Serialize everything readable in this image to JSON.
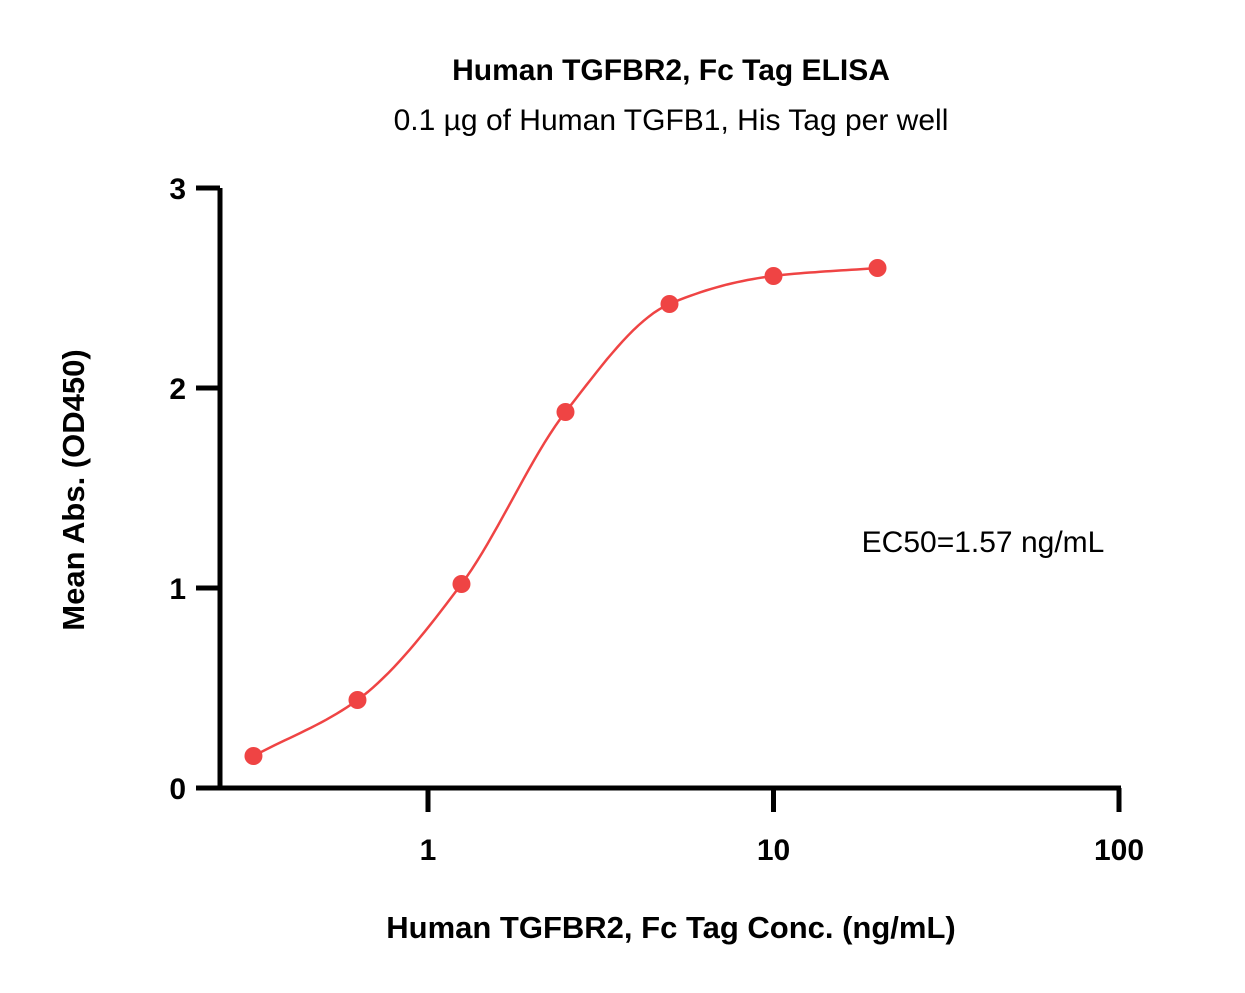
{
  "chart_data": {
    "type": "scatter",
    "title": "Human TGFBR2, Fc Tag ELISA",
    "subtitle": "0.1 µg of Human TGFB1, His Tag per well",
    "xlabel": "Human TGFBR2, Fc Tag Conc. (ng/mL)",
    "ylabel": "Mean Abs. (OD450)",
    "x_scale": "log",
    "xlim": [
      0.25,
      100
    ],
    "ylim": [
      0,
      3
    ],
    "x_ticks": [
      1,
      10,
      100
    ],
    "x_tick_labels": [
      "1",
      "10",
      "100"
    ],
    "y_ticks": [
      0,
      1,
      2,
      3
    ],
    "y_tick_labels": [
      "0",
      "1",
      "2",
      "3"
    ],
    "grid": false,
    "series": [
      {
        "color": "#ef4444",
        "x": [
          0.3125,
          0.625,
          1.25,
          2.5,
          5,
          10,
          20
        ],
        "y": [
          0.16,
          0.44,
          1.02,
          1.88,
          2.42,
          2.56,
          2.6
        ],
        "fit": "4PL sigmoid curve"
      }
    ],
    "annotations": [
      {
        "text": "EC50=1.57 ng/mL"
      }
    ]
  }
}
